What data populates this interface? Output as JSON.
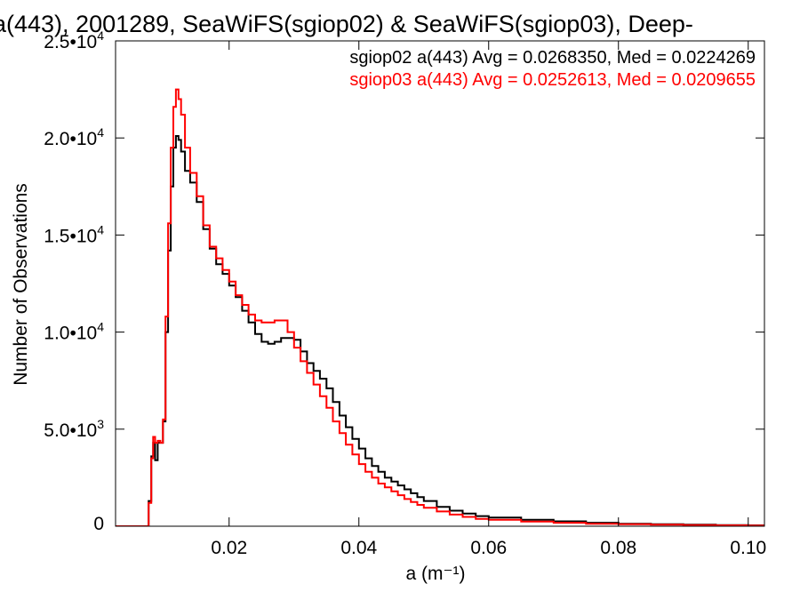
{
  "chart_data": {
    "type": "line",
    "title": "a(443), 2001289, SeaWiFS(sgiop02) & SeaWiFS(sgiop03), Deep-",
    "xlabel": "a (m⁻¹)",
    "ylabel": "Number of Observations",
    "xlim": [
      0.0025,
      0.1025
    ],
    "ylim": [
      0,
      25000
    ],
    "xticks": [
      {
        "value": 0.02,
        "label": "0.02"
      },
      {
        "value": 0.04,
        "label": "0.04"
      },
      {
        "value": 0.06,
        "label": "0.06"
      },
      {
        "value": 0.08,
        "label": "0.08"
      },
      {
        "value": 0.1,
        "label": "0.10"
      }
    ],
    "yticks": [
      {
        "value": 0,
        "mant": "0",
        "exp": ""
      },
      {
        "value": 5000,
        "mant": "5.0•10",
        "exp": "3"
      },
      {
        "value": 10000,
        "mant": "1.0•10",
        "exp": "4"
      },
      {
        "value": 15000,
        "mant": "1.5•10",
        "exp": "4"
      },
      {
        "value": 20000,
        "mant": "2.0•10",
        "exp": "4"
      },
      {
        "value": 25000,
        "mant": "2.5•10",
        "exp": "4"
      }
    ],
    "grid": false,
    "legend_position": "top-right",
    "series": [
      {
        "name": "sgiop02",
        "legend": "sgiop02 a(443) Avg = 0.0268350, Med = 0.0224269",
        "color": "#000000",
        "points": [
          [
            0.0025,
            0
          ],
          [
            0.0075,
            0
          ],
          [
            0.0076,
            1300
          ],
          [
            0.008,
            3600
          ],
          [
            0.0083,
            4300
          ],
          [
            0.0086,
            3400
          ],
          [
            0.009,
            4300
          ],
          [
            0.0094,
            4300
          ],
          [
            0.0098,
            5400
          ],
          [
            0.0102,
            10000
          ],
          [
            0.0106,
            14200
          ],
          [
            0.011,
            17500
          ],
          [
            0.0114,
            19500
          ],
          [
            0.0118,
            20100
          ],
          [
            0.0122,
            19900
          ],
          [
            0.0126,
            19300
          ],
          [
            0.0132,
            18300
          ],
          [
            0.014,
            17700
          ],
          [
            0.015,
            16700
          ],
          [
            0.016,
            15300
          ],
          [
            0.017,
            14300
          ],
          [
            0.018,
            13500
          ],
          [
            0.019,
            13000
          ],
          [
            0.02,
            12400
          ],
          [
            0.021,
            11800
          ],
          [
            0.022,
            11100
          ],
          [
            0.023,
            10500
          ],
          [
            0.024,
            9900
          ],
          [
            0.025,
            9500
          ],
          [
            0.026,
            9400
          ],
          [
            0.027,
            9500
          ],
          [
            0.028,
            9700
          ],
          [
            0.029,
            9700
          ],
          [
            0.03,
            9600
          ],
          [
            0.031,
            9000
          ],
          [
            0.032,
            8400
          ],
          [
            0.033,
            8000
          ],
          [
            0.034,
            7600
          ],
          [
            0.035,
            7100
          ],
          [
            0.036,
            6400
          ],
          [
            0.037,
            5700
          ],
          [
            0.038,
            5100
          ],
          [
            0.039,
            4500
          ],
          [
            0.04,
            4000
          ],
          [
            0.041,
            3500
          ],
          [
            0.042,
            3100
          ],
          [
            0.043,
            2800
          ],
          [
            0.044,
            2500
          ],
          [
            0.045,
            2300
          ],
          [
            0.046,
            2100
          ],
          [
            0.047,
            1900
          ],
          [
            0.048,
            1700
          ],
          [
            0.049,
            1500
          ],
          [
            0.05,
            1300
          ],
          [
            0.052,
            1000
          ],
          [
            0.054,
            800
          ],
          [
            0.056,
            650
          ],
          [
            0.058,
            520
          ],
          [
            0.06,
            450
          ],
          [
            0.065,
            330
          ],
          [
            0.07,
            250
          ],
          [
            0.075,
            180
          ],
          [
            0.08,
            130
          ],
          [
            0.085,
            100
          ],
          [
            0.09,
            80
          ],
          [
            0.095,
            60
          ],
          [
            0.1,
            45
          ],
          [
            0.1025,
            40
          ]
        ]
      },
      {
        "name": "sgiop03",
        "legend": "sgiop03 a(443) Avg = 0.0252613, Med = 0.0209655",
        "color": "#ff0000",
        "points": [
          [
            0.0025,
            0
          ],
          [
            0.0075,
            0
          ],
          [
            0.0076,
            1200
          ],
          [
            0.008,
            3500
          ],
          [
            0.0083,
            4600
          ],
          [
            0.0086,
            4300
          ],
          [
            0.009,
            4400
          ],
          [
            0.0094,
            4300
          ],
          [
            0.0098,
            5500
          ],
          [
            0.0102,
            10800
          ],
          [
            0.0106,
            15600
          ],
          [
            0.011,
            19500
          ],
          [
            0.0114,
            21600
          ],
          [
            0.0118,
            22500
          ],
          [
            0.0122,
            22000
          ],
          [
            0.0126,
            21200
          ],
          [
            0.0132,
            19500
          ],
          [
            0.014,
            18200
          ],
          [
            0.015,
            17000
          ],
          [
            0.016,
            15500
          ],
          [
            0.017,
            14400
          ],
          [
            0.018,
            13800
          ],
          [
            0.019,
            13200
          ],
          [
            0.02,
            12600
          ],
          [
            0.021,
            11900
          ],
          [
            0.022,
            11400
          ],
          [
            0.023,
            10900
          ],
          [
            0.024,
            10600
          ],
          [
            0.025,
            10500
          ],
          [
            0.026,
            10500
          ],
          [
            0.027,
            10600
          ],
          [
            0.028,
            10600
          ],
          [
            0.029,
            10000
          ],
          [
            0.03,
            9200
          ],
          [
            0.031,
            8500
          ],
          [
            0.032,
            7900
          ],
          [
            0.033,
            7300
          ],
          [
            0.034,
            6700
          ],
          [
            0.035,
            6100
          ],
          [
            0.036,
            5400
          ],
          [
            0.037,
            4800
          ],
          [
            0.038,
            4200
          ],
          [
            0.039,
            3700
          ],
          [
            0.04,
            3200
          ],
          [
            0.041,
            2800
          ],
          [
            0.042,
            2500
          ],
          [
            0.043,
            2200
          ],
          [
            0.044,
            2000
          ],
          [
            0.045,
            1800
          ],
          [
            0.046,
            1600
          ],
          [
            0.047,
            1400
          ],
          [
            0.048,
            1250
          ],
          [
            0.049,
            1100
          ],
          [
            0.05,
            950
          ],
          [
            0.052,
            760
          ],
          [
            0.054,
            600
          ],
          [
            0.056,
            480
          ],
          [
            0.058,
            380
          ],
          [
            0.06,
            330
          ],
          [
            0.065,
            240
          ],
          [
            0.07,
            180
          ],
          [
            0.075,
            130
          ],
          [
            0.08,
            100
          ],
          [
            0.085,
            80
          ],
          [
            0.09,
            60
          ],
          [
            0.095,
            45
          ],
          [
            0.1,
            35
          ],
          [
            0.1025,
            30
          ]
        ]
      }
    ]
  }
}
